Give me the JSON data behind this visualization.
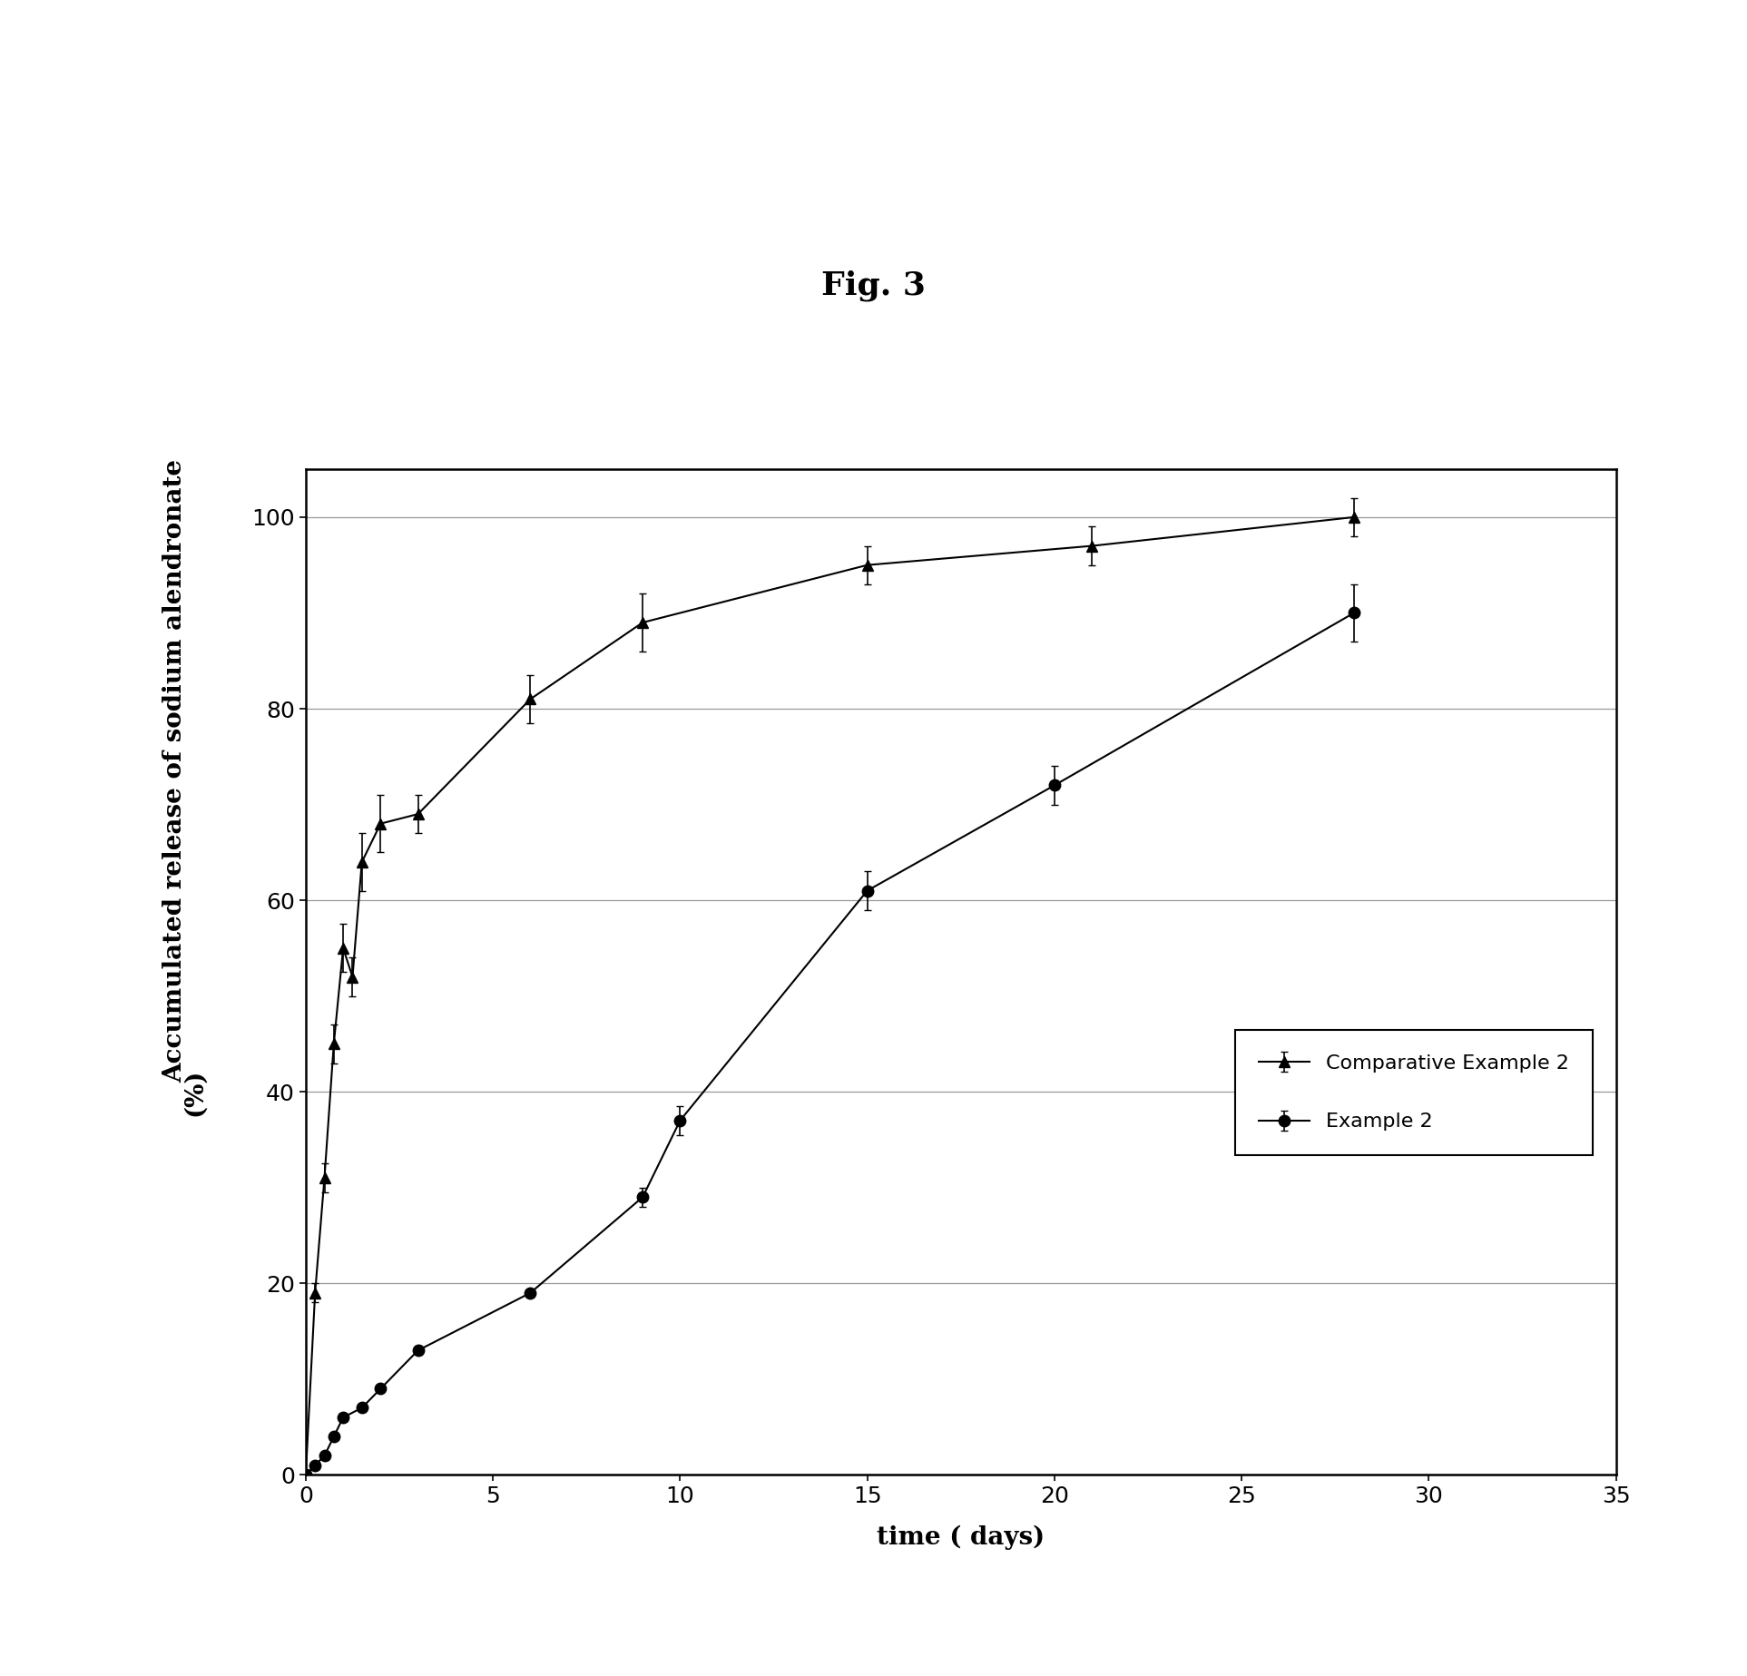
{
  "title": "Fig. 3",
  "xlabel": "time ( days)",
  "ylabel_main": "Accumulated release of sodium alendronate",
  "ylabel_unit": "(%)",
  "xlim": [
    0,
    35
  ],
  "ylim": [
    0,
    105
  ],
  "xticks": [
    0,
    5,
    10,
    15,
    20,
    25,
    30,
    35
  ],
  "yticks": [
    0,
    20,
    40,
    60,
    80,
    100
  ],
  "comp_example2": {
    "x": [
      0,
      0.25,
      0.5,
      0.75,
      1.0,
      1.25,
      1.5,
      2.0,
      3.0,
      6.0,
      9.0,
      15.0,
      21.0,
      28.0
    ],
    "y": [
      0,
      19,
      31,
      45,
      55,
      52,
      64,
      68,
      69,
      81,
      89,
      95,
      97,
      100
    ],
    "yerr": [
      0,
      1,
      1.5,
      2,
      2.5,
      2,
      3,
      3,
      2,
      2.5,
      3,
      2,
      2,
      2
    ],
    "label": "Comparative Example 2",
    "color": "#000000",
    "marker": "^",
    "markersize": 9,
    "linewidth": 1.5
  },
  "example2": {
    "x": [
      0,
      0.25,
      0.5,
      0.75,
      1.0,
      1.5,
      2.0,
      3.0,
      6.0,
      9.0,
      10.0,
      15.0,
      20.0,
      28.0
    ],
    "y": [
      0,
      1,
      2,
      4,
      6,
      7,
      9,
      13,
      19,
      29,
      37,
      61,
      72,
      90
    ],
    "yerr": [
      0,
      0,
      0,
      0,
      0,
      0,
      0,
      0,
      0,
      1,
      1.5,
      2,
      2,
      3
    ],
    "label": "Example 2",
    "color": "#000000",
    "marker": "o",
    "markersize": 9,
    "linewidth": 1.5
  },
  "background_color": "#ffffff",
  "grid_color": "#999999",
  "title_fontsize": 26,
  "axis_label_fontsize": 20,
  "tick_fontsize": 18,
  "legend_fontsize": 16
}
